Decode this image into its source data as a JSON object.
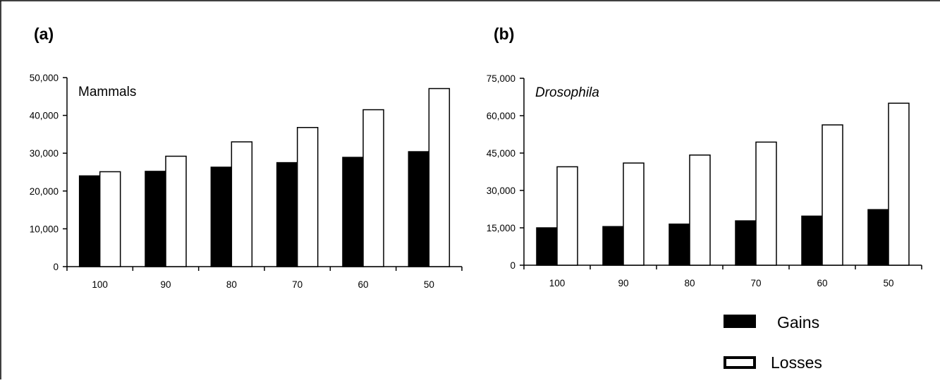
{
  "panel_labels": [
    "(a)",
    "(b)"
  ],
  "legend": [
    {
      "label": "Gains",
      "fill": "#000000"
    },
    {
      "label": "Losses",
      "fill": "#ffffff"
    }
  ],
  "chart_data": [
    {
      "type": "bar",
      "annotation": "Mammals",
      "annotation_italic": false,
      "categories": [
        "100",
        "90",
        "80",
        "70",
        "60",
        "50"
      ],
      "series": [
        {
          "name": "Gains",
          "values": [
            24000,
            25200,
            26300,
            27500,
            28900,
            30400
          ]
        },
        {
          "name": "Losses",
          "values": [
            25100,
            29200,
            33000,
            36800,
            41500,
            47100
          ]
        }
      ],
      "ylim": [
        0,
        50000
      ],
      "yticks": [
        0,
        10000,
        20000,
        30000,
        40000,
        50000
      ],
      "ytick_labels": [
        "0",
        "10,000",
        "20,000",
        "30,000",
        "40,000",
        "50,000"
      ],
      "grid": false
    },
    {
      "type": "bar",
      "annotation": "Drosophila",
      "annotation_italic": true,
      "categories": [
        "100",
        "90",
        "80",
        "70",
        "60",
        "50"
      ],
      "series": [
        {
          "name": "Gains",
          "values": [
            15000,
            15500,
            16500,
            17800,
            19700,
            22300
          ]
        },
        {
          "name": "Losses",
          "values": [
            39500,
            41000,
            44200,
            49400,
            56300,
            65000
          ]
        }
      ],
      "ylim": [
        0,
        75000
      ],
      "yticks": [
        0,
        15000,
        30000,
        45000,
        60000,
        75000
      ],
      "ytick_labels": [
        "0",
        "15,000",
        "30,000",
        "45,000",
        "60,000",
        "75,000"
      ],
      "grid": false
    }
  ]
}
